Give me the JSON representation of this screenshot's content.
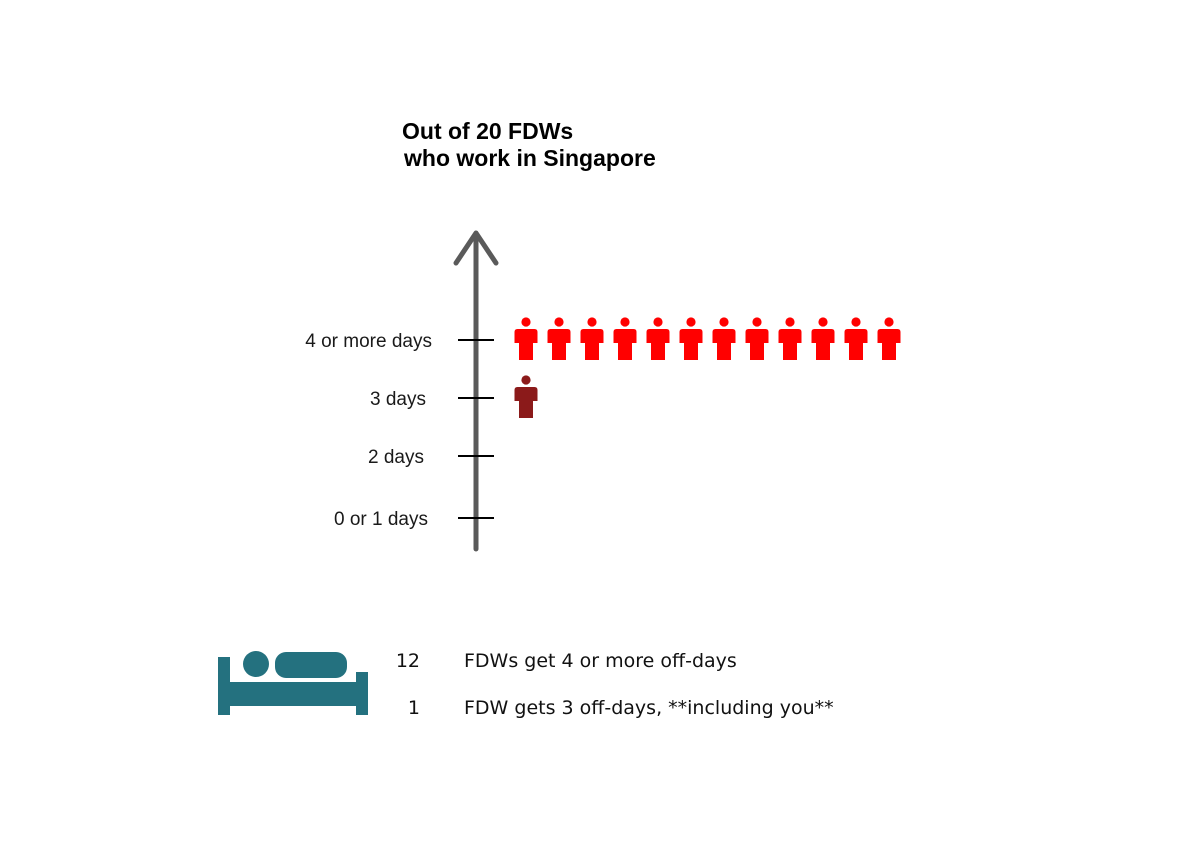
{
  "chart_data": {
    "type": "pictograph",
    "title_lines": [
      "Out of 20 FDWs",
      "who work in Singapore"
    ],
    "categories": [
      "0 or 1 days",
      "2 days",
      "3 days",
      "4 or more days"
    ],
    "values": [
      0,
      0,
      1,
      12
    ],
    "total": 20,
    "highlight_category": "3 days"
  },
  "legend": {
    "icon": "bed-icon",
    "items": [
      {
        "count": "12",
        "text": "FDWs get 4 or more off-days"
      },
      {
        "count": "1",
        "text": "FDW gets 3 off-days, **including you**"
      }
    ]
  },
  "colors": {
    "person": "#ff0000",
    "highlight_person": "#8b1a1a",
    "axis": "#5a5a5a",
    "tick": "#000000",
    "bed": "#24717f"
  }
}
